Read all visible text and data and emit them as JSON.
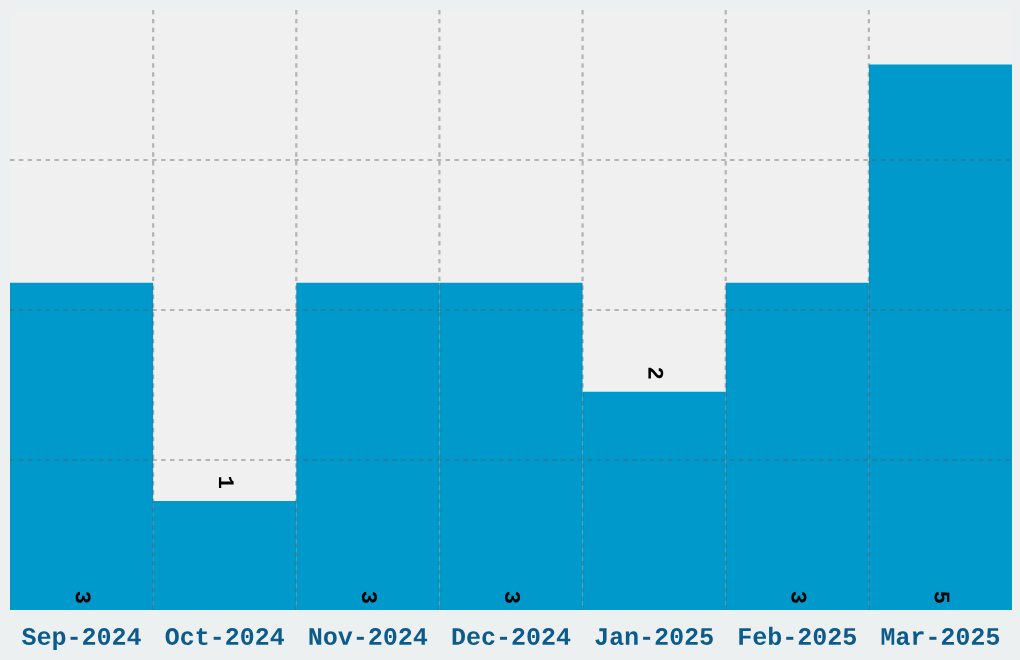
{
  "chart_data": {
    "type": "bar",
    "categories": [
      "Sep-2024",
      "Oct-2024",
      "Nov-2024",
      "Dec-2024",
      "Jan-2025",
      "Feb-2025",
      "Mar-2025"
    ],
    "values": [
      3,
      1,
      3,
      3,
      2,
      3,
      5
    ],
    "color": "#0099cc",
    "ylim": [
      0,
      5.5
    ],
    "yticks": [
      {
        "value": 1.375,
        "label": null
      },
      {
        "value": 2.75,
        "label": null
      },
      {
        "value": 4.125,
        "label": null
      }
    ],
    "tick_labels": "x",
    "grid": true,
    "data_labels": true
  }
}
